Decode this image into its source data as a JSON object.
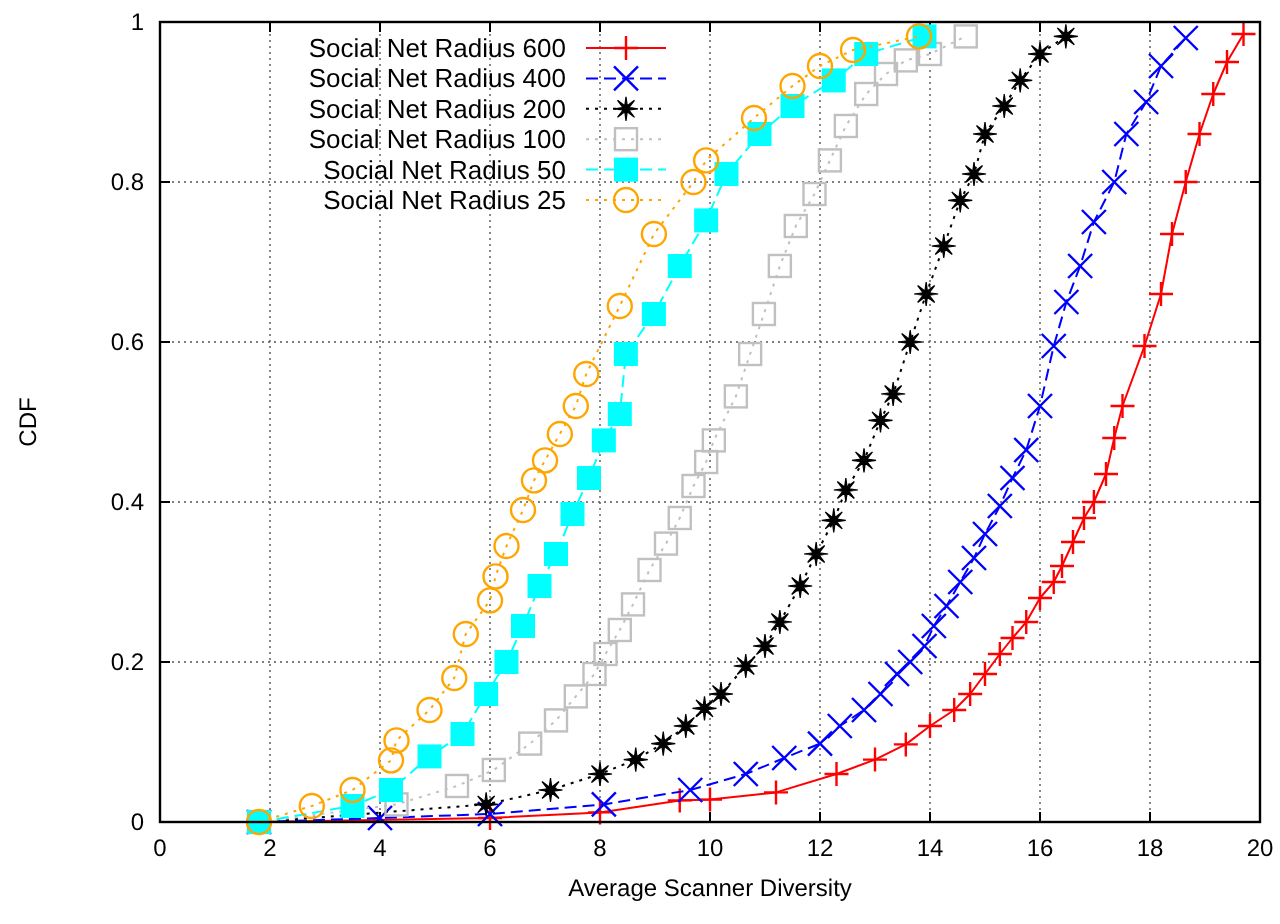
{
  "chart_data": {
    "type": "line",
    "xlabel": "Average Scanner Diversity",
    "ylabel": "CDF",
    "xlim": [
      0,
      20
    ],
    "ylim": [
      0,
      1
    ],
    "xticks": [
      0,
      2,
      4,
      6,
      8,
      10,
      12,
      14,
      16,
      18,
      20
    ],
    "yticks": [
      0,
      0.2,
      0.4,
      0.6,
      0.8,
      1
    ],
    "grid": true,
    "legend": "top left",
    "series": [
      {
        "name": "Social Net Radius 600",
        "color": "#ff0000",
        "marker": "cross",
        "line_style": "solid",
        "x": [
          1.8,
          6,
          8,
          9.45,
          10,
          11.2,
          12.3,
          13,
          13.56,
          14,
          14.44,
          14.73,
          15,
          15.27,
          15.5,
          15.75,
          16,
          16.25,
          16.4,
          16.6,
          16.8,
          16.98,
          17.2,
          17.35,
          17.5,
          17.9,
          18.2,
          18.4,
          18.65,
          18.9,
          19.15,
          19.4,
          19.7
        ],
        "values": [
          0,
          0.005,
          0.012,
          0.027,
          0.028,
          0.037,
          0.06,
          0.078,
          0.097,
          0.12,
          0.14,
          0.16,
          0.185,
          0.21,
          0.23,
          0.25,
          0.28,
          0.3,
          0.32,
          0.35,
          0.38,
          0.4,
          0.435,
          0.48,
          0.52,
          0.595,
          0.66,
          0.735,
          0.8,
          0.86,
          0.91,
          0.95,
          0.985
        ]
      },
      {
        "name": "Social Net Radius 400",
        "color": "#0000ff",
        "marker": "x",
        "line_style": "dashed",
        "x": [
          1.8,
          4,
          6,
          8.07,
          9.64,
          10.65,
          11.35,
          12,
          12.36,
          12.8,
          13.1,
          13.4,
          13.64,
          13.9,
          14.07,
          14.3,
          14.55,
          14.8,
          15,
          15.27,
          15.5,
          15.75,
          16,
          16.25,
          16.48,
          16.73,
          16.98,
          17.35,
          17.57,
          17.93,
          18.2,
          18.65
        ],
        "values": [
          0,
          0.005,
          0.01,
          0.022,
          0.04,
          0.06,
          0.08,
          0.098,
          0.12,
          0.14,
          0.16,
          0.185,
          0.2,
          0.22,
          0.245,
          0.27,
          0.3,
          0.33,
          0.36,
          0.395,
          0.43,
          0.465,
          0.52,
          0.595,
          0.65,
          0.695,
          0.75,
          0.8,
          0.86,
          0.9,
          0.945,
          0.98
        ]
      },
      {
        "name": "Social Net Radius 200",
        "color": "#000000",
        "marker": "star",
        "line_style": "dotted",
        "x": [
          1.8,
          5.93,
          7.1,
          8,
          8.65,
          9.15,
          9.56,
          9.9,
          10.2,
          10.65,
          11,
          11.27,
          11.64,
          11.93,
          12.25,
          12.47,
          12.8,
          13.1,
          13.33,
          13.64,
          13.93,
          14.25,
          14.55,
          14.8,
          15,
          15.35,
          15.64,
          16,
          16.47
        ],
        "values": [
          0,
          0.022,
          0.04,
          0.06,
          0.078,
          0.098,
          0.12,
          0.142,
          0.16,
          0.195,
          0.22,
          0.25,
          0.295,
          0.335,
          0.377,
          0.415,
          0.452,
          0.502,
          0.535,
          0.6,
          0.66,
          0.72,
          0.777,
          0.81,
          0.86,
          0.895,
          0.927,
          0.96,
          0.982
        ]
      },
      {
        "name": "Social Net Radius 100",
        "color": "#c0c0c0",
        "marker": "square",
        "line_style": "dotted",
        "x": [
          1.8,
          4.3,
          5.4,
          6.07,
          6.73,
          7.2,
          7.56,
          7.9,
          8.1,
          8.36,
          8.6,
          8.9,
          9.2,
          9.45,
          9.7,
          9.93,
          10.07,
          10.47,
          10.73,
          10.98,
          11.27,
          11.56,
          11.9,
          12.18,
          12.47,
          12.84,
          13.2,
          13.56,
          14,
          14.65
        ],
        "values": [
          0,
          0.022,
          0.045,
          0.065,
          0.098,
          0.127,
          0.157,
          0.185,
          0.21,
          0.24,
          0.272,
          0.315,
          0.348,
          0.38,
          0.42,
          0.45,
          0.477,
          0.532,
          0.585,
          0.635,
          0.695,
          0.745,
          0.785,
          0.827,
          0.87,
          0.91,
          0.935,
          0.952,
          0.96,
          0.982
        ]
      },
      {
        "name": "Social Net Radius 50",
        "color": "#00ffff",
        "marker": "square_filled",
        "line_style": "dashed",
        "x": [
          1.8,
          3.5,
          4.2,
          4.9,
          5.5,
          5.93,
          6.3,
          6.6,
          6.9,
          7.2,
          7.5,
          7.8,
          8.07,
          8.36,
          8.47,
          8.98,
          9.45,
          9.93,
          10.3,
          10.9,
          11.5,
          12.25,
          12.84,
          13.9
        ],
        "values": [
          0,
          0.02,
          0.04,
          0.082,
          0.11,
          0.16,
          0.2,
          0.245,
          0.295,
          0.335,
          0.385,
          0.43,
          0.477,
          0.51,
          0.585,
          0.635,
          0.695,
          0.752,
          0.81,
          0.86,
          0.895,
          0.927,
          0.96,
          0.982
        ]
      },
      {
        "name": "Social Net Radius 25",
        "color": "#ffa500",
        "marker": "circle",
        "line_style": "dotted",
        "x": [
          1.8,
          2.76,
          3.5,
          4.2,
          4.3,
          4.9,
          5.35,
          5.56,
          6,
          6.1,
          6.3,
          6.6,
          6.8,
          7,
          7.27,
          7.56,
          7.75,
          8.36,
          8.98,
          9.7,
          9.93,
          10.8,
          11.5,
          12,
          12.6,
          13.8
        ],
        "values": [
          0,
          0.02,
          0.04,
          0.077,
          0.102,
          0.14,
          0.18,
          0.235,
          0.277,
          0.307,
          0.345,
          0.39,
          0.427,
          0.452,
          0.485,
          0.52,
          0.56,
          0.645,
          0.735,
          0.8,
          0.827,
          0.88,
          0.92,
          0.945,
          0.965,
          0.982
        ]
      }
    ]
  }
}
